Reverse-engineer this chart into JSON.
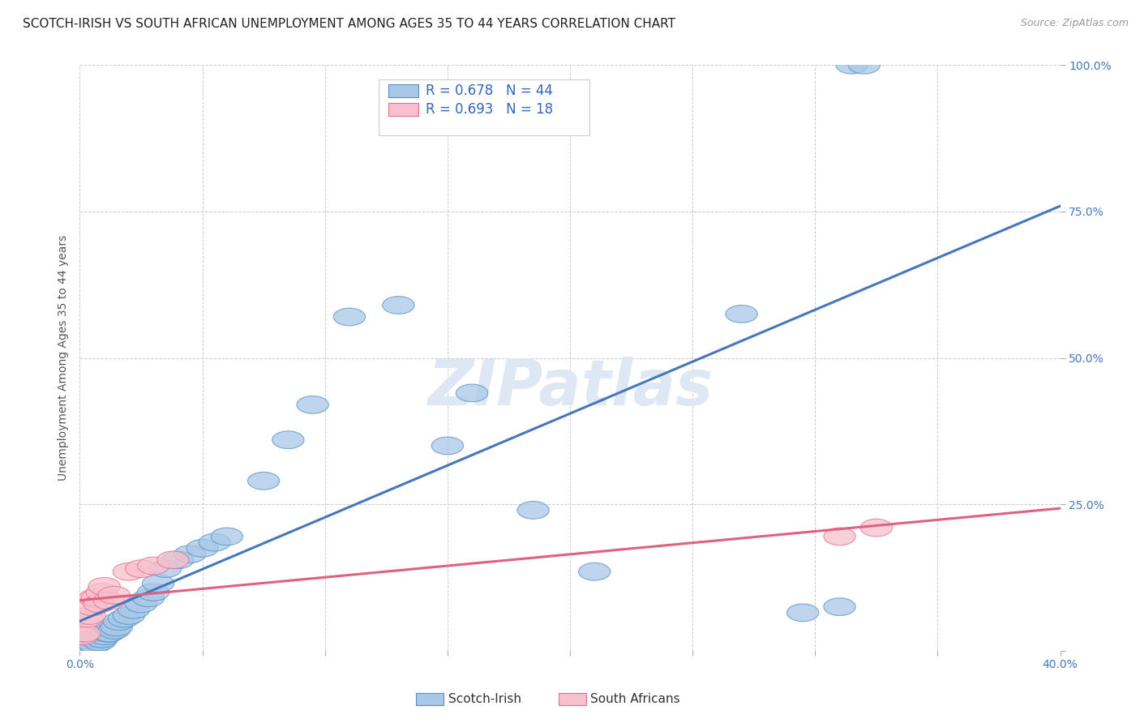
{
  "title": "SCOTCH-IRISH VS SOUTH AFRICAN UNEMPLOYMENT AMONG AGES 35 TO 44 YEARS CORRELATION CHART",
  "source": "Source: ZipAtlas.com",
  "ylabel": "Unemployment Among Ages 35 to 44 years",
  "xlim": [
    0.0,
    0.4
  ],
  "ylim": [
    0.0,
    1.0
  ],
  "xticks": [
    0.0,
    0.05,
    0.1,
    0.15,
    0.2,
    0.25,
    0.3,
    0.35,
    0.4
  ],
  "yticks": [
    0.0,
    0.25,
    0.5,
    0.75,
    1.0
  ],
  "blue_R": 0.678,
  "blue_N": 44,
  "pink_R": 0.693,
  "pink_N": 18,
  "blue_color": "#a8c8e8",
  "blue_edge_color": "#5590c8",
  "blue_line_color": "#4477bb",
  "pink_color": "#f8c0cc",
  "pink_edge_color": "#e07090",
  "pink_line_color": "#e06080",
  "legend_label_blue": "Scotch-Irish",
  "legend_label_pink": "South Africans",
  "blue_scatter_x": [
    0.002,
    0.003,
    0.004,
    0.005,
    0.005,
    0.006,
    0.006,
    0.007,
    0.008,
    0.009,
    0.01,
    0.011,
    0.012,
    0.013,
    0.014,
    0.015,
    0.016,
    0.018,
    0.02,
    0.022,
    0.025,
    0.028,
    0.03,
    0.032,
    0.035,
    0.04,
    0.045,
    0.05,
    0.055,
    0.06,
    0.075,
    0.085,
    0.095,
    0.11,
    0.13,
    0.15,
    0.16,
    0.185,
    0.21,
    0.27,
    0.295,
    0.31,
    0.315,
    0.32
  ],
  "blue_scatter_y": [
    0.01,
    0.015,
    0.01,
    0.02,
    0.015,
    0.02,
    0.01,
    0.02,
    0.015,
    0.02,
    0.025,
    0.03,
    0.03,
    0.04,
    0.035,
    0.04,
    0.05,
    0.055,
    0.06,
    0.07,
    0.08,
    0.09,
    0.1,
    0.115,
    0.14,
    0.155,
    0.165,
    0.175,
    0.185,
    0.195,
    0.29,
    0.36,
    0.42,
    0.57,
    0.59,
    0.35,
    0.44,
    0.24,
    0.135,
    0.575,
    0.065,
    0.075,
    1.0,
    1.0
  ],
  "pink_scatter_x": [
    0.001,
    0.002,
    0.003,
    0.004,
    0.005,
    0.006,
    0.007,
    0.008,
    0.009,
    0.01,
    0.012,
    0.014,
    0.02,
    0.025,
    0.03,
    0.038,
    0.31,
    0.325
  ],
  "pink_scatter_y": [
    0.025,
    0.03,
    0.055,
    0.06,
    0.075,
    0.09,
    0.09,
    0.08,
    0.1,
    0.11,
    0.085,
    0.095,
    0.135,
    0.14,
    0.145,
    0.155,
    0.195,
    0.21
  ],
  "background_color": "#ffffff",
  "grid_color": "#cccccc",
  "watermark_text": "ZIPatlas",
  "watermark_color": "#dde8f4",
  "title_fontsize": 11,
  "axis_label_fontsize": 10,
  "tick_fontsize": 10,
  "legend_fontsize": 12
}
